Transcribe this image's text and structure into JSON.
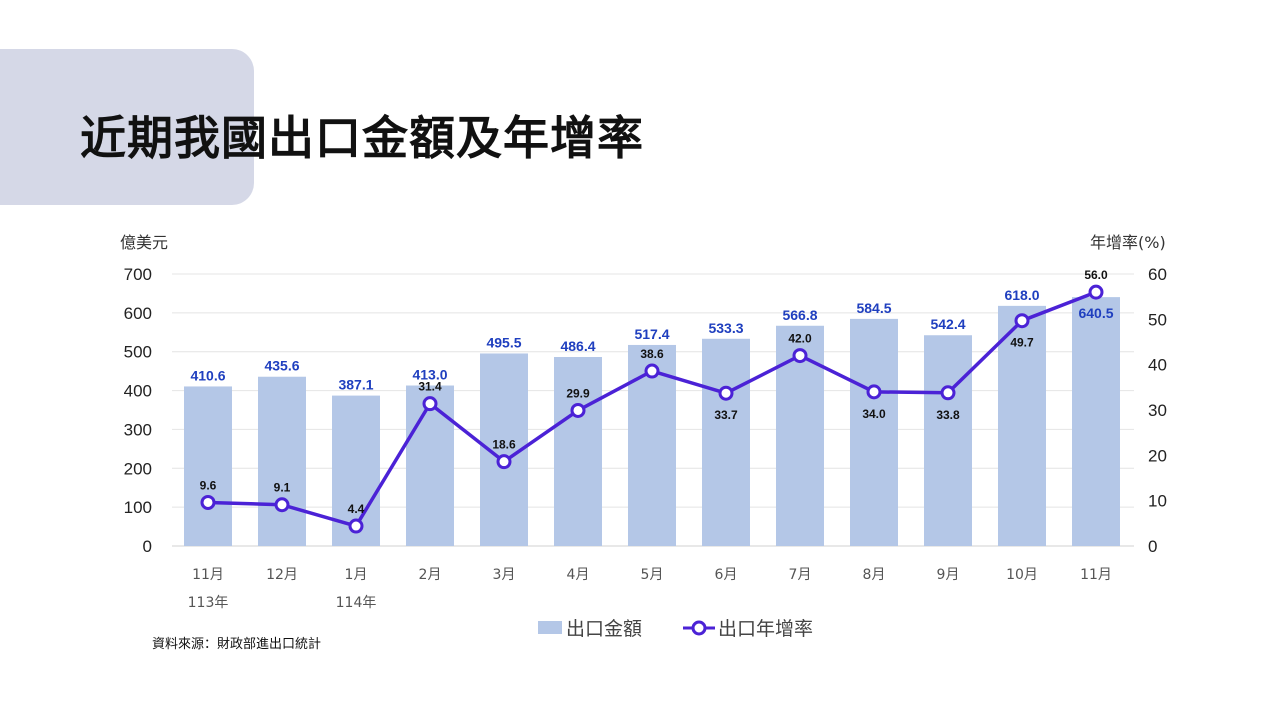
{
  "title": "近期我國出口金額及年增率",
  "source": "資料來源：財政部進出口統計",
  "chart_data": {
    "type": "bar+line",
    "categories": [
      "11月",
      "12月",
      "1月",
      "2月",
      "3月",
      "4月",
      "5月",
      "6月",
      "7月",
      "8月",
      "9月",
      "10月",
      "11月"
    ],
    "year_labels": [
      "113年",
      "",
      "114年",
      "",
      "",
      "",
      "",
      "",
      "",
      "",
      "",
      "",
      ""
    ],
    "left_axis": {
      "label": "億美元",
      "ylim": [
        0,
        700
      ],
      "ticks": [
        0,
        100,
        200,
        300,
        400,
        500,
        600,
        700
      ]
    },
    "right_axis": {
      "label": "年增率(%)",
      "ylim": [
        0,
        60
      ],
      "ticks": [
        0,
        10,
        20,
        30,
        40,
        50,
        60
      ]
    },
    "grid": true,
    "legend_position": "bottom",
    "series": [
      {
        "name": "出口金額",
        "type": "bar",
        "axis": "left",
        "color": "#b4c7e7",
        "label_color": "#1f3fbf",
        "values": [
          410.6,
          435.6,
          387.1,
          413.0,
          495.5,
          486.4,
          517.4,
          533.3,
          566.8,
          584.5,
          542.4,
          618.0,
          640.5
        ]
      },
      {
        "name": "出口年增率",
        "type": "line",
        "axis": "right",
        "color": "#4b22d6",
        "label_color": "#111111",
        "values": [
          9.6,
          9.1,
          4.4,
          31.4,
          18.6,
          29.9,
          38.6,
          33.7,
          42.0,
          34.0,
          33.8,
          49.7,
          56.0
        ]
      }
    ]
  }
}
